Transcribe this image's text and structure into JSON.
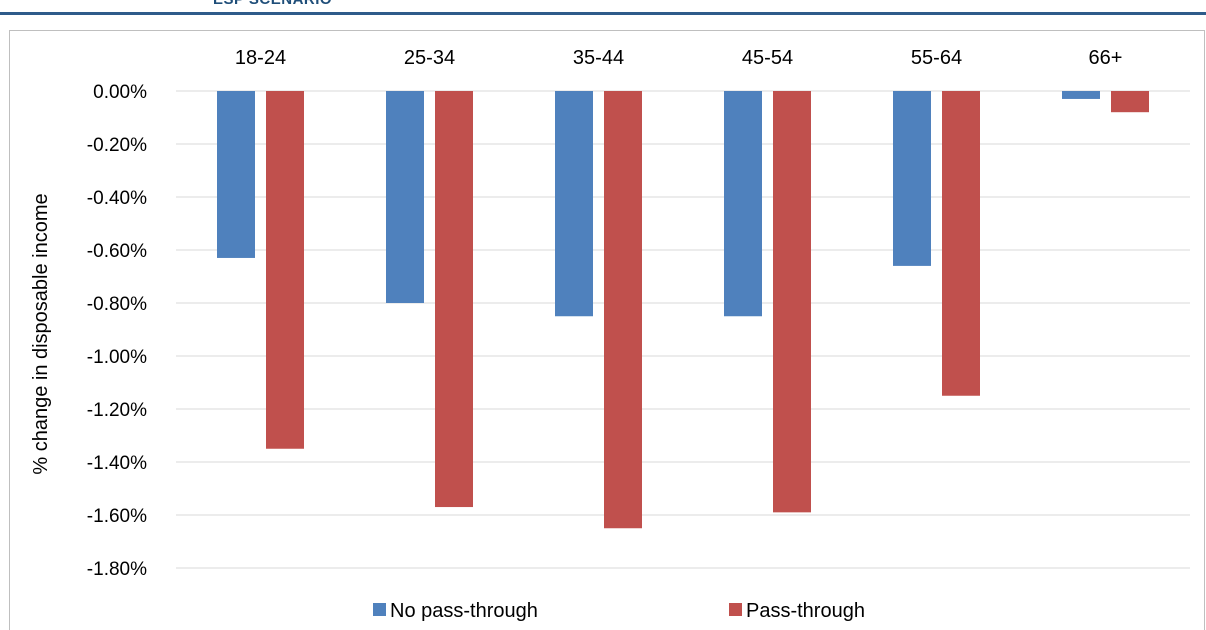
{
  "header": {
    "title": "ESP SCENARIO"
  },
  "chart_data": {
    "type": "bar",
    "title": "",
    "xlabel": "",
    "ylabel": "% change in disposable income",
    "categories": [
      "18-24",
      "25-34",
      "35-44",
      "45-54",
      "55-64",
      "66+"
    ],
    "series": [
      {
        "name": "No pass-through",
        "color": "#4f81bd",
        "values": [
          -0.63,
          -0.8,
          -0.85,
          -0.85,
          -0.66,
          -0.03
        ]
      },
      {
        "name": "Pass-through",
        "color": "#c0504d",
        "values": [
          -1.35,
          -1.57,
          -1.65,
          -1.59,
          -1.15,
          -0.08
        ]
      }
    ],
    "ylim": [
      -1.8,
      0.0
    ],
    "yticks": [
      "0.00%",
      "-0.20%",
      "-0.40%",
      "-0.60%",
      "-0.80%",
      "-1.00%",
      "-1.20%",
      "-1.40%",
      "-1.60%",
      "-1.80%"
    ],
    "grid": true,
    "legend": "bottom",
    "category_labels_position": "top"
  }
}
